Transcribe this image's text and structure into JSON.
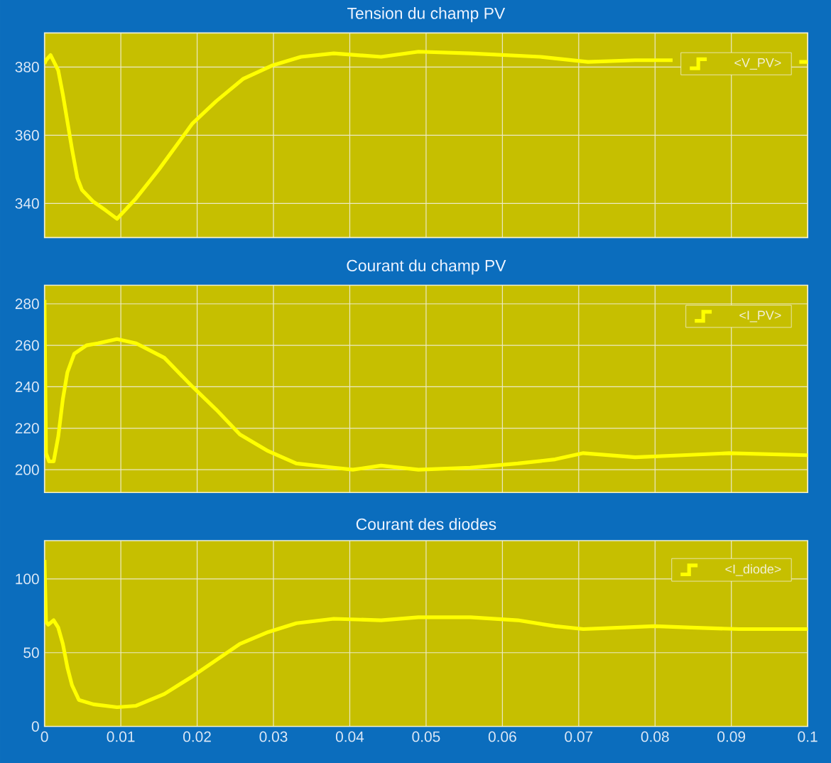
{
  "chart_data": [
    {
      "type": "line",
      "title": "Tension du champ PV",
      "x": [
        0,
        0.0002,
        0.0008,
        0.0018,
        0.0024,
        0.003,
        0.0036,
        0.0043,
        0.0049,
        0.0064,
        0.008,
        0.0095,
        0.012,
        0.015,
        0.0194,
        0.0225,
        0.026,
        0.0299,
        0.0336,
        0.0379,
        0.0441,
        0.049,
        0.0558,
        0.065,
        0.0712,
        0.0774,
        0.0823,
        0.085,
        0.09,
        0.095,
        0.0989,
        0.1
      ],
      "series": [
        {
          "name": "<V_PV>",
          "color": "#ffff00",
          "values": [
            381,
            382,
            383.5,
            379,
            372,
            364,
            356,
            347.5,
            344,
            340.5,
            338,
            335.5,
            341.5,
            350,
            363.5,
            370,
            376.5,
            380.5,
            383,
            384,
            383,
            384.5,
            384,
            383,
            381.5,
            382,
            382,
            null,
            null,
            null,
            381.5,
            381.5
          ]
        }
      ],
      "xlim": [
        0,
        0.1
      ],
      "xticks": [
        0,
        0.01,
        0.02,
        0.03,
        0.04,
        0.05,
        0.06,
        0.07,
        0.08,
        0.09,
        0.1
      ],
      "ylim": [
        330,
        390
      ],
      "yticks": [
        340,
        360,
        380
      ],
      "grid": true,
      "legend": "top right",
      "tick_labels": "y"
    },
    {
      "type": "line",
      "title": "Courant du champ PV",
      "x": [
        0,
        0.0002,
        0.0006,
        0.0012,
        0.0018,
        0.0024,
        0.003,
        0.0039,
        0.0055,
        0.007,
        0.0095,
        0.012,
        0.0157,
        0.0194,
        0.0225,
        0.0256,
        0.0293,
        0.033,
        0.0379,
        0.0404,
        0.0441,
        0.049,
        0.0558,
        0.062,
        0.0669,
        0.0706,
        0.0774,
        0.0836,
        0.0897,
        0.1
      ],
      "series": [
        {
          "name": "<I_PV>",
          "color": "#ffff00",
          "values": [
            282,
            208,
            204,
            204,
            216,
            234,
            247,
            256,
            260,
            261,
            263,
            261,
            254,
            240,
            229,
            217,
            209,
            203,
            201,
            200,
            202,
            200,
            201,
            203,
            205,
            208,
            206,
            207,
            208,
            207
          ]
        }
      ],
      "xlim": [
        0,
        0.1
      ],
      "xticks": [
        0,
        0.01,
        0.02,
        0.03,
        0.04,
        0.05,
        0.06,
        0.07,
        0.08,
        0.09,
        0.1
      ],
      "ylim": [
        189,
        289
      ],
      "yticks": [
        200,
        220,
        240,
        260,
        280
      ],
      "grid": true,
      "legend": "top right",
      "tick_labels": "y"
    },
    {
      "type": "line",
      "title": "Courant des diodes",
      "x": [
        0,
        0.0002,
        0.0005,
        0.0012,
        0.0018,
        0.0024,
        0.003,
        0.0036,
        0.0045,
        0.0064,
        0.0095,
        0.012,
        0.0157,
        0.0194,
        0.0225,
        0.0256,
        0.0293,
        0.033,
        0.0379,
        0.0441,
        0.049,
        0.0558,
        0.062,
        0.0669,
        0.0706,
        0.0756,
        0.0799,
        0.0848,
        0.091,
        0.1
      ],
      "series": [
        {
          "name": "<I_diode>",
          "color": "#ffff00",
          "values": [
            113,
            71,
            69,
            72,
            67,
            56,
            40,
            28,
            18,
            15,
            13,
            14,
            22,
            34,
            45,
            56,
            64,
            70,
            73,
            72,
            74,
            74,
            72,
            68,
            66,
            67,
            68,
            67,
            66,
            66
          ]
        }
      ],
      "xlim": [
        0,
        0.1
      ],
      "xticks": [
        0,
        0.01,
        0.02,
        0.03,
        0.04,
        0.05,
        0.06,
        0.07,
        0.08,
        0.09,
        0.1
      ],
      "ylim": [
        0,
        126
      ],
      "yticks": [
        0,
        50,
        100
      ],
      "grid": true,
      "legend": "top right"
    }
  ]
}
